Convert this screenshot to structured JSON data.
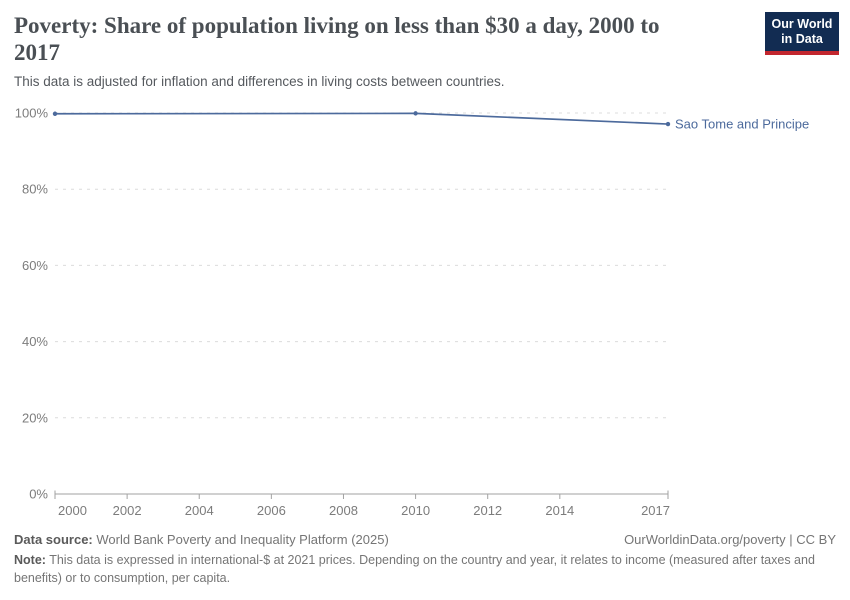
{
  "header": {
    "title": "Poverty: Share of population living on less than $30 a day, 2000 to 2017",
    "subtitle": "This data is adjusted for inflation and differences in living costs between countries."
  },
  "logo": {
    "line1": "Our World",
    "line2": "in Data",
    "bg_color": "#122c52",
    "accent_color": "#c2262e"
  },
  "chart_data": {
    "type": "line",
    "title": "Poverty: Share of population living on less than $30 a day, 2000 to 2017",
    "xlabel": "",
    "ylabel": "",
    "xlim": [
      2000,
      2017
    ],
    "ylim": [
      0,
      100
    ],
    "x_ticks": [
      2000,
      2002,
      2004,
      2006,
      2008,
      2010,
      2012,
      2014,
      2017
    ],
    "y_ticks": [
      0,
      20,
      40,
      60,
      80,
      100
    ],
    "y_tick_suffix": "%",
    "grid": "horizontal-dashed",
    "legend": "end-of-line-label",
    "series": [
      {
        "name": "Sao Tome and Principe",
        "color": "#4C6A9C",
        "x": [
          2000,
          2010,
          2017
        ],
        "y": [
          99.8,
          99.9,
          97.1
        ]
      }
    ],
    "colors": {
      "grid": "#dcdcdc",
      "axis": "#a2a2a2",
      "tick_label": "#7c7c7c"
    }
  },
  "footer": {
    "datasource_label": "Data source:",
    "datasource_text": " World Bank Poverty and Inequality Platform (2025)",
    "rights": "OurWorldinData.org/poverty | CC BY",
    "note_label": "Note:",
    "note_text": " This data is expressed in international-$ at 2021 prices. Depending on the country and year, it relates to income (measured after taxes and benefits) or to consumption, per capita."
  }
}
